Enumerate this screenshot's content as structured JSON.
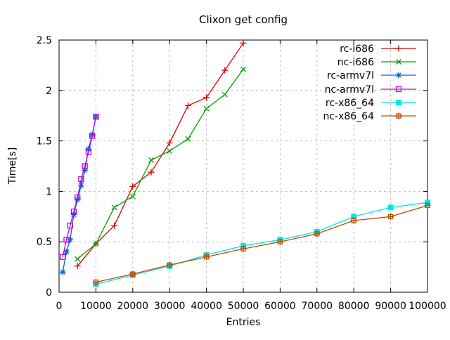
{
  "window": {
    "background": "#ffffff"
  },
  "chart_data": {
    "type": "line",
    "title": "Clixon get config",
    "xlabel": "Entries",
    "ylabel": "Time[s]",
    "xlim": [
      0,
      100000
    ],
    "ylim": [
      0,
      2.5
    ],
    "xticks": [
      0,
      10000,
      20000,
      30000,
      40000,
      50000,
      60000,
      70000,
      80000,
      90000,
      100000
    ],
    "yticks": [
      0,
      0.5,
      1,
      1.5,
      2,
      2.5
    ],
    "grid": true,
    "legend_position": "top-right-inside",
    "colors": {
      "axis": "#000000",
      "grid": "#bdbdbd",
      "text": "#000000"
    },
    "series": [
      {
        "name": "rc-i686",
        "color": "#dd0000",
        "marker": "plus",
        "x": [
          5000,
          10000,
          15000,
          20000,
          25000,
          30000,
          35000,
          40000,
          45000,
          50000
        ],
        "y": [
          0.26,
          0.48,
          0.66,
          1.05,
          1.19,
          1.48,
          1.85,
          1.93,
          2.2,
          2.47
        ]
      },
      {
        "name": "nc-i686",
        "color": "#00a000",
        "marker": "cross",
        "x": [
          5000,
          10000,
          15000,
          20000,
          25000,
          30000,
          35000,
          40000,
          45000,
          50000
        ],
        "y": [
          0.33,
          0.48,
          0.84,
          0.95,
          1.31,
          1.4,
          1.52,
          1.82,
          1.96,
          2.21
        ]
      },
      {
        "name": "rc-armv7l",
        "color": "#0a62d0",
        "marker": "asterisk",
        "x": [
          1000,
          2000,
          3000,
          4000,
          5000,
          6000,
          7000,
          8000,
          9000,
          10000
        ],
        "y": [
          0.2,
          0.4,
          0.52,
          0.77,
          0.92,
          1.06,
          1.21,
          1.42,
          1.56,
          1.74
        ]
      },
      {
        "name": "nc-armv7l",
        "color": "#c000e0",
        "marker": "open-square",
        "x": [
          1000,
          2000,
          3000,
          4000,
          5000,
          6000,
          7000,
          8000,
          9000,
          10000
        ],
        "y": [
          0.35,
          0.52,
          0.66,
          0.8,
          0.94,
          1.12,
          1.25,
          1.39,
          1.55,
          1.74
        ]
      },
      {
        "name": "rc-x86_64",
        "color": "#00e6e6",
        "marker": "filled-square",
        "x": [
          10000,
          20000,
          30000,
          40000,
          50000,
          60000,
          70000,
          80000,
          90000,
          100000
        ],
        "y": [
          0.08,
          0.17,
          0.26,
          0.37,
          0.46,
          0.52,
          0.6,
          0.75,
          0.84,
          0.89
        ]
      },
      {
        "name": "nc-x86_64",
        "color": "#c04a00",
        "marker": "boxed-plus",
        "x": [
          10000,
          20000,
          30000,
          40000,
          50000,
          60000,
          70000,
          80000,
          90000,
          100000
        ],
        "y": [
          0.1,
          0.18,
          0.27,
          0.35,
          0.43,
          0.5,
          0.58,
          0.71,
          0.75,
          0.86
        ]
      }
    ]
  }
}
